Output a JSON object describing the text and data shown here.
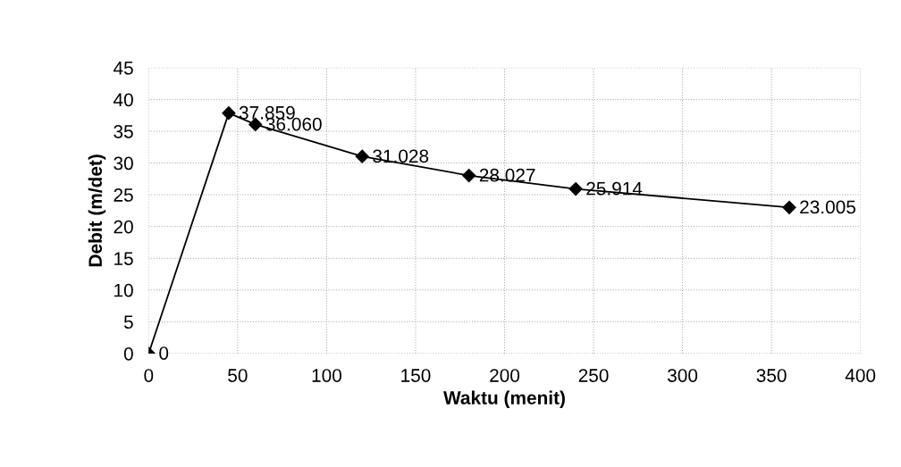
{
  "chart_data": {
    "type": "line",
    "xlabel": "Waktu (menit)",
    "ylabel": "Debit (m/det)",
    "x": [
      0,
      45,
      60,
      120,
      180,
      240,
      360
    ],
    "series": [
      {
        "color": "#000000",
        "values": [
          0,
          37.859,
          36.06,
          31.028,
          28.027,
          25.914,
          23.005
        ],
        "value_labels": [
          "0",
          "37.859",
          "36.060",
          "31.028",
          "28.027",
          "25.914",
          "23.005"
        ]
      }
    ],
    "xlim": [
      0,
      400
    ],
    "xticks": [
      0,
      50,
      100,
      150,
      200,
      250,
      300,
      350,
      400
    ],
    "ylim": [
      0,
      45
    ],
    "yticks": [
      0,
      5,
      10,
      15,
      20,
      25,
      30,
      35,
      40,
      45
    ],
    "grid": true,
    "marker": "diamond",
    "line_style": "solid",
    "legend": false
  }
}
